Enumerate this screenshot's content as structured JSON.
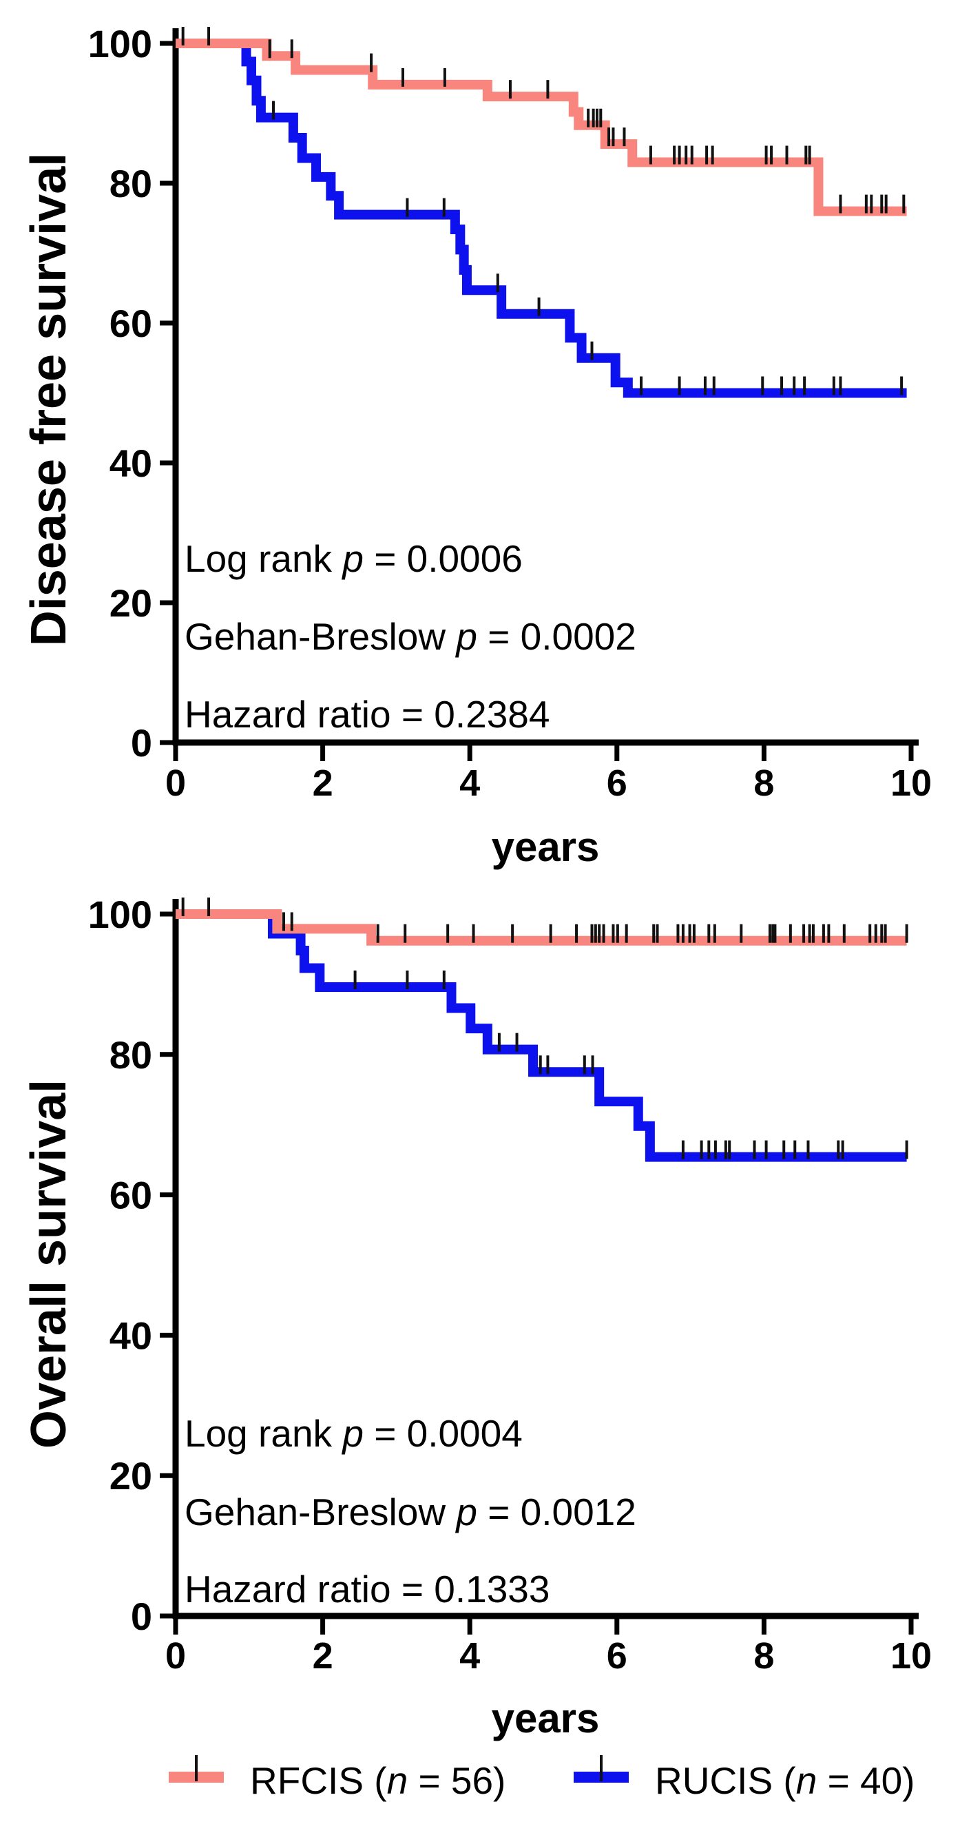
{
  "figure": {
    "background": "#ffffff",
    "axis_color": "#000000",
    "censor_tick_color": "#111111"
  },
  "chart_data": [
    {
      "type": "line",
      "subtype": "kaplan_meier_step",
      "ylabel": "Disease free survival",
      "xlabel": "years",
      "xlim": [
        0,
        10
      ],
      "ylim": [
        0,
        100
      ],
      "xticks": [
        0,
        2,
        4,
        6,
        8,
        10
      ],
      "yticks": [
        100,
        80,
        60,
        40,
        20,
        0
      ],
      "grid": "off",
      "stats": [
        {
          "pre": "Log rank ",
          "em": "p",
          "post": " = 0.0006"
        },
        {
          "pre": "Gehan-Breslow ",
          "em": "p",
          "post": " = 0.0002"
        },
        {
          "pre": "Hazard ratio = 0.2384",
          "em": "",
          "post": ""
        }
      ],
      "series": [
        {
          "name": "RFCIS",
          "n": 56,
          "color": "#f9867e",
          "end_time": 9.94,
          "steps": [
            [
              0,
              100
            ],
            [
              1.24,
              98.2
            ],
            [
              1.63,
              96.2
            ],
            [
              2.68,
              94.1
            ],
            [
              4.24,
              92.4
            ],
            [
              5.41,
              90.2
            ],
            [
              5.48,
              88.3
            ],
            [
              5.84,
              85.6
            ],
            [
              6.21,
              83.0
            ],
            [
              8.74,
              76.0
            ]
          ],
          "censors": [
            [
              0.1,
              100
            ],
            [
              0.45,
              100
            ],
            [
              1.28,
              98.2
            ],
            [
              1.58,
              98.2
            ],
            [
              2.66,
              96.2
            ],
            [
              3.09,
              94.1
            ],
            [
              3.66,
              94.1
            ],
            [
              4.55,
              92.4
            ],
            [
              5.06,
              92.4
            ],
            [
              5.61,
              88.3
            ],
            [
              5.68,
              88.3
            ],
            [
              5.73,
              88.3
            ],
            [
              5.78,
              88.3
            ],
            [
              5.89,
              85.6
            ],
            [
              5.95,
              85.6
            ],
            [
              6.1,
              85.6
            ],
            [
              6.46,
              83.0
            ],
            [
              6.78,
              83.0
            ],
            [
              6.85,
              83.0
            ],
            [
              6.94,
              83.0
            ],
            [
              7.02,
              83.0
            ],
            [
              7.22,
              83.0
            ],
            [
              7.3,
              83.0
            ],
            [
              8.03,
              83.0
            ],
            [
              8.1,
              83.0
            ],
            [
              8.31,
              83.0
            ],
            [
              8.57,
              83.0
            ],
            [
              8.62,
              83.0
            ],
            [
              9.04,
              76.0
            ],
            [
              9.39,
              76.0
            ],
            [
              9.46,
              76.0
            ],
            [
              9.6,
              76.0
            ],
            [
              9.66,
              76.0
            ],
            [
              9.9,
              76.0
            ]
          ]
        },
        {
          "name": "RUCIS",
          "n": 40,
          "color": "#0c11ee",
          "end_time": 9.94,
          "steps": [
            [
              0,
              100
            ],
            [
              0.96,
              97.4
            ],
            [
              1.03,
              94.7
            ],
            [
              1.1,
              91.8
            ],
            [
              1.16,
              89.4
            ],
            [
              1.6,
              86.5
            ],
            [
              1.72,
              83.6
            ],
            [
              1.91,
              80.9
            ],
            [
              2.11,
              78.2
            ],
            [
              2.22,
              75.5
            ],
            [
              3.8,
              73.4
            ],
            [
              3.87,
              70.5
            ],
            [
              3.92,
              67.6
            ],
            [
              3.96,
              64.7
            ],
            [
              4.43,
              61.3
            ],
            [
              5.36,
              57.9
            ],
            [
              5.52,
              55.0
            ],
            [
              5.98,
              51.5
            ],
            [
              6.15,
              50.0
            ]
          ],
          "censors": [
            [
              1.33,
              89.4
            ],
            [
              3.15,
              75.5
            ],
            [
              3.65,
              75.5
            ],
            [
              4.38,
              64.7
            ],
            [
              4.94,
              61.3
            ],
            [
              5.66,
              55.0
            ],
            [
              6.33,
              50.0
            ],
            [
              6.85,
              50.0
            ],
            [
              7.2,
              50.0
            ],
            [
              7.32,
              50.0
            ],
            [
              7.98,
              50.0
            ],
            [
              8.24,
              50.0
            ],
            [
              8.41,
              50.0
            ],
            [
              8.55,
              50.0
            ],
            [
              8.95,
              50.0
            ],
            [
              9.04,
              50.0
            ],
            [
              9.87,
              50.0
            ]
          ]
        }
      ]
    },
    {
      "type": "line",
      "subtype": "kaplan_meier_step",
      "ylabel": "Overall survival",
      "xlabel": "years",
      "xlim": [
        0,
        10
      ],
      "ylim": [
        0,
        100
      ],
      "xticks": [
        0,
        2,
        4,
        6,
        8,
        10
      ],
      "yticks": [
        100,
        80,
        60,
        40,
        20,
        0
      ],
      "grid": "off",
      "stats": [
        {
          "pre": "Log rank ",
          "em": "p",
          "post": " = 0.0004"
        },
        {
          "pre": "Gehan-Breslow ",
          "em": "p",
          "post": " = 0.0012"
        },
        {
          "pre": "Hazard ratio = 0.1333",
          "em": "",
          "post": ""
        }
      ],
      "series": [
        {
          "name": "RFCIS",
          "n": 56,
          "color": "#f9867e",
          "end_time": 9.94,
          "steps": [
            [
              0,
              100
            ],
            [
              1.38,
              97.9
            ],
            [
              2.66,
              96.2
            ]
          ],
          "censors": [
            [
              0.1,
              100
            ],
            [
              0.45,
              100
            ],
            [
              1.47,
              97.9
            ],
            [
              1.58,
              97.9
            ],
            [
              2.75,
              96.2
            ],
            [
              3.12,
              96.2
            ],
            [
              3.7,
              96.2
            ],
            [
              4.05,
              96.2
            ],
            [
              4.58,
              96.2
            ],
            [
              5.1,
              96.2
            ],
            [
              5.45,
              96.2
            ],
            [
              5.66,
              96.2
            ],
            [
              5.71,
              96.2
            ],
            [
              5.76,
              96.2
            ],
            [
              5.82,
              96.2
            ],
            [
              5.95,
              96.2
            ],
            [
              6.01,
              96.2
            ],
            [
              6.13,
              96.2
            ],
            [
              6.5,
              96.2
            ],
            [
              6.55,
              96.2
            ],
            [
              6.83,
              96.2
            ],
            [
              6.9,
              96.2
            ],
            [
              6.99,
              96.2
            ],
            [
              7.05,
              96.2
            ],
            [
              7.25,
              96.2
            ],
            [
              7.33,
              96.2
            ],
            [
              7.69,
              96.2
            ],
            [
              8.08,
              96.2
            ],
            [
              8.12,
              96.2
            ],
            [
              8.15,
              96.2
            ],
            [
              8.36,
              96.2
            ],
            [
              8.54,
              96.2
            ],
            [
              8.62,
              96.2
            ],
            [
              8.67,
              96.2
            ],
            [
              8.81,
              96.2
            ],
            [
              8.88,
              96.2
            ],
            [
              9.09,
              96.2
            ],
            [
              9.44,
              96.2
            ],
            [
              9.52,
              96.2
            ],
            [
              9.6,
              96.2
            ],
            [
              9.65,
              96.2
            ],
            [
              9.94,
              96.2
            ]
          ]
        },
        {
          "name": "RUCIS",
          "n": 40,
          "color": "#0c11ee",
          "end_time": 9.94,
          "steps": [
            [
              0,
              100
            ],
            [
              1.32,
              97.2
            ],
            [
              1.7,
              94.8
            ],
            [
              1.75,
              92.3
            ],
            [
              1.96,
              89.6
            ],
            [
              3.75,
              86.6
            ],
            [
              4.01,
              83.7
            ],
            [
              4.24,
              80.7
            ],
            [
              4.86,
              77.5
            ],
            [
              5.76,
              73.3
            ],
            [
              6.29,
              69.8
            ],
            [
              6.45,
              65.4
            ]
          ],
          "censors": [
            [
              2.44,
              89.6
            ],
            [
              3.15,
              89.6
            ],
            [
              3.65,
              89.6
            ],
            [
              4.4,
              80.7
            ],
            [
              4.64,
              80.7
            ],
            [
              4.96,
              77.5
            ],
            [
              5.06,
              77.5
            ],
            [
              5.56,
              77.5
            ],
            [
              5.67,
              77.5
            ],
            [
              6.9,
              65.4
            ],
            [
              7.15,
              65.4
            ],
            [
              7.25,
              65.4
            ],
            [
              7.34,
              65.4
            ],
            [
              7.48,
              65.4
            ],
            [
              7.53,
              65.4
            ],
            [
              7.87,
              65.4
            ],
            [
              8.03,
              65.4
            ],
            [
              8.27,
              65.4
            ],
            [
              8.42,
              65.4
            ],
            [
              8.6,
              65.4
            ],
            [
              9.01,
              65.4
            ],
            [
              9.07,
              65.4
            ],
            [
              9.94,
              65.4
            ]
          ]
        }
      ]
    }
  ],
  "legend": {
    "position": "bottom",
    "items": [
      {
        "series": "RFCIS",
        "pre": "RFCIS (",
        "em": "n",
        "post": " = 56)",
        "color": "#f9867e"
      },
      {
        "series": "RUCIS",
        "pre": "RUCIS (",
        "em": "n",
        "post": " = 40)",
        "color": "#0c11ee"
      }
    ]
  }
}
